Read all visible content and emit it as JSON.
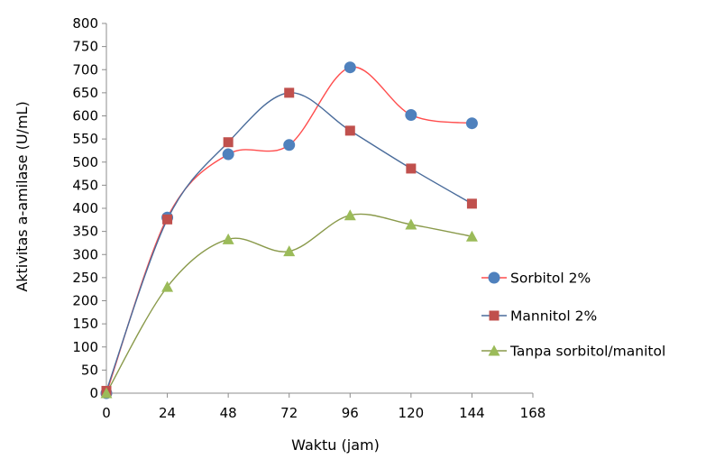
{
  "chart_data": {
    "type": "line",
    "title": "",
    "xlabel": "Waktu (jam)",
    "ylabel": "Aktivitas a-amilase (U/mL)",
    "x_ticks": [
      0,
      24,
      48,
      72,
      96,
      120,
      144,
      168
    ],
    "y_ticks": [
      0,
      50,
      100,
      150,
      200,
      250,
      300,
      350,
      400,
      450,
      500,
      550,
      600,
      650,
      700,
      750,
      800
    ],
    "xlim": [
      0,
      168
    ],
    "ylim": [
      0,
      800
    ],
    "grid": false,
    "smooth": true,
    "legend_position": "right",
    "x": [
      0,
      24,
      48,
      72,
      96,
      120,
      144
    ],
    "series": [
      {
        "name": "Sorbitol 2%",
        "marker": "circle",
        "line_color": "#ff4d4d",
        "marker_color": "#4f81bd",
        "values": [
          0,
          380,
          517,
          537,
          705,
          602,
          584
        ]
      },
      {
        "name": "Mannitol 2%",
        "marker": "square",
        "line_color": "#4a6c9b",
        "marker_color": "#c0504d",
        "values": [
          5,
          376,
          543,
          650,
          568,
          486,
          410
        ]
      },
      {
        "name": "Tanpa sorbitol/manitol",
        "marker": "triangle",
        "line_color": "#8a9a4b",
        "marker_color": "#9bbb59",
        "values": [
          0,
          230,
          333,
          307,
          385,
          365,
          339
        ]
      }
    ]
  }
}
